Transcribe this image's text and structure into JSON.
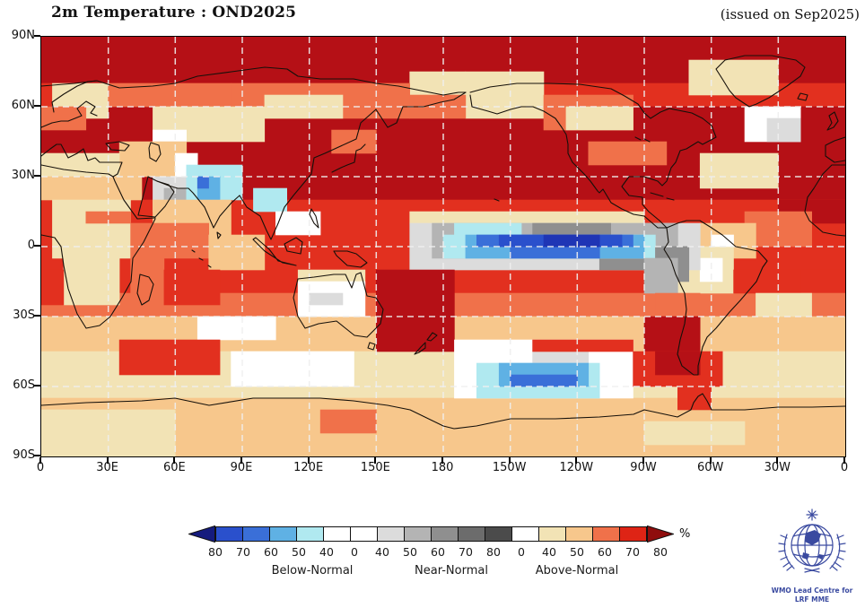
{
  "header": {
    "title": "2m Temperature : OND2025",
    "issued": "(issued on Sep2025)"
  },
  "axes": {
    "lat_labels": [
      "90N",
      "60N",
      "30N",
      "0",
      "30S",
      "60S",
      "90S"
    ],
    "lon_labels": [
      "0",
      "30E",
      "60E",
      "90E",
      "120E",
      "150E",
      "180",
      "150W",
      "120W",
      "90W",
      "60W",
      "30W",
      "0"
    ]
  },
  "colorbar": {
    "percent_label": "%",
    "tick_labels": [
      "80",
      "70",
      "60",
      "50",
      "40",
      "0",
      "40",
      "50",
      "60",
      "70",
      "80",
      "0",
      "40",
      "50",
      "60",
      "70",
      "80"
    ],
    "segment_colors": [
      "#2a50cc",
      "#3a6fd8",
      "#5fb1e4",
      "#b0e9f0",
      "#ffffff",
      "#ffffff",
      "#dcdcdc",
      "#b4b4b4",
      "#8f8f8f",
      "#6c6c6c",
      "#4b4b4b",
      "#ffffff",
      "#f2e3b5",
      "#f7c78c",
      "#f0714a",
      "#de2415"
    ],
    "arrow_left_color": "#151b7e",
    "arrow_right_color": "#8f0d0d",
    "categories": [
      "Below-Normal",
      "Near-Normal",
      "Above-Normal"
    ]
  },
  "logo": {
    "line1": "WMO Lead Centre for",
    "line2": "LRF MME",
    "color": "#3a4aa0"
  },
  "chart_data": {
    "type": "heatmap",
    "title": "2m Temperature : OND2025",
    "subtitle": "(issued on Sep2025)",
    "xlabel_ticks": [
      "0",
      "30E",
      "60E",
      "90E",
      "120E",
      "150E",
      "180",
      "150W",
      "120W",
      "90W",
      "60W",
      "30W",
      "0"
    ],
    "ylabel_ticks": [
      "90N",
      "60N",
      "30N",
      "0",
      "30S",
      "60S",
      "90S"
    ],
    "unit": "%",
    "scale": {
      "categories": [
        "Below-Normal",
        "Near-Normal",
        "Above-Normal"
      ],
      "probability_thresholds": [
        40,
        50,
        60,
        70,
        80
      ]
    },
    "map": {
      "grid": {
        "cols": 72,
        "rows": 36
      },
      "gridline_color": "#efefef",
      "palette": {
        "R": "#b51016",
        "r": "#e2301f",
        "o": "#f0714a",
        "a": "#f7c78c",
        "y": "#f2e3b5",
        "w": "#ffffff",
        "g": "#dcdcdc",
        "G": "#b4b4b4",
        "m": "#8f8f8f",
        "c": "#b0e9f0",
        "s": "#5fb1e4",
        "b": "#3a6fd8",
        "B": "#2a50cc",
        "N": "#1f35b5"
      },
      "base_bands": [
        [
          0,
          3,
          "R"
        ],
        [
          4,
          5,
          "r"
        ],
        [
          6,
          13,
          "R"
        ],
        [
          14,
          19,
          "r"
        ],
        [
          20,
          21,
          "r"
        ],
        [
          22,
          23,
          "o"
        ],
        [
          24,
          26,
          "a"
        ],
        [
          27,
          30,
          "y"
        ],
        [
          31,
          35,
          "a"
        ]
      ],
      "patches": [
        [
          2,
          4,
          58,
          65,
          "y"
        ],
        [
          3,
          4,
          33,
          37,
          "y"
        ],
        [
          3,
          6,
          38,
          44,
          "y"
        ],
        [
          4,
          6,
          1,
          5,
          "y"
        ],
        [
          4,
          5,
          6,
          16,
          "o"
        ],
        [
          4,
          6,
          17,
          32,
          "o"
        ],
        [
          5,
          6,
          20,
          26,
          "y"
        ],
        [
          6,
          8,
          10,
          19,
          "y"
        ],
        [
          5,
          7,
          45,
          52,
          "o"
        ],
        [
          6,
          7,
          47,
          52,
          "y"
        ],
        [
          6,
          8,
          63,
          67,
          "w"
        ],
        [
          7,
          8,
          65,
          67,
          "g"
        ],
        [
          6,
          7,
          0,
          3,
          "o"
        ],
        [
          8,
          9,
          10,
          12,
          "w"
        ],
        [
          9,
          11,
          7,
          12,
          "a"
        ],
        [
          10,
          12,
          0,
          6,
          "y"
        ],
        [
          12,
          13,
          0,
          8,
          "a"
        ],
        [
          9,
          10,
          49,
          55,
          "o"
        ],
        [
          10,
          12,
          59,
          65,
          "y"
        ],
        [
          12,
          14,
          10,
          13,
          "g"
        ],
        [
          13,
          13,
          11,
          12,
          "G"
        ],
        [
          10,
          11,
          12,
          13,
          "w"
        ],
        [
          11,
          13,
          13,
          17,
          "c"
        ],
        [
          12,
          13,
          14,
          15,
          "s"
        ],
        [
          12,
          12,
          14,
          14,
          "b"
        ],
        [
          13,
          14,
          19,
          21,
          "c"
        ],
        [
          15,
          16,
          21,
          24,
          "w"
        ],
        [
          14,
          16,
          10,
          16,
          "a"
        ],
        [
          14,
          18,
          1,
          7,
          "y"
        ],
        [
          15,
          15,
          4,
          7,
          "o"
        ],
        [
          16,
          18,
          8,
          14,
          "o"
        ],
        [
          17,
          19,
          15,
          19,
          "a"
        ],
        [
          14,
          15,
          66,
          71,
          "R"
        ],
        [
          15,
          17,
          63,
          68,
          "o"
        ],
        [
          16,
          18,
          59,
          63,
          "a"
        ],
        [
          18,
          21,
          57,
          61,
          "y"
        ],
        [
          19,
          20,
          59,
          60,
          "w"
        ],
        [
          8,
          9,
          26,
          29,
          "o"
        ],
        [
          5,
          6,
          33,
          37,
          "o"
        ],
        [
          15,
          15,
          33,
          53,
          "y"
        ],
        [
          16,
          19,
          33,
          58,
          "g"
        ],
        [
          16,
          18,
          35,
          56,
          "G"
        ],
        [
          16,
          16,
          44,
          50,
          "m"
        ],
        [
          18,
          19,
          50,
          57,
          "m"
        ],
        [
          17,
          18,
          36,
          54,
          "c"
        ],
        [
          16,
          16,
          37,
          42,
          "c"
        ],
        [
          17,
          18,
          38,
          53,
          "s"
        ],
        [
          17,
          17,
          39,
          52,
          "b"
        ],
        [
          18,
          18,
          42,
          49,
          "b"
        ],
        [
          17,
          17,
          41,
          51,
          "B"
        ],
        [
          17,
          17,
          45,
          49,
          "N"
        ],
        [
          18,
          20,
          55,
          57,
          "m"
        ],
        [
          19,
          21,
          54,
          56,
          "G"
        ],
        [
          17,
          17,
          60,
          61,
          "w"
        ],
        [
          20,
          21,
          23,
          28,
          "y"
        ],
        [
          21,
          23,
          23,
          28,
          "w"
        ],
        [
          22,
          22,
          24,
          26,
          "g"
        ],
        [
          20,
          26,
          30,
          36,
          "R"
        ],
        [
          22,
          25,
          55,
          58,
          "o"
        ],
        [
          24,
          26,
          54,
          58,
          "R"
        ],
        [
          20,
          21,
          62,
          67,
          "r"
        ],
        [
          22,
          23,
          64,
          68,
          "y"
        ],
        [
          19,
          22,
          2,
          6,
          "y"
        ],
        [
          20,
          22,
          0,
          1,
          "r"
        ],
        [
          19,
          21,
          8,
          10,
          "o"
        ],
        [
          20,
          22,
          11,
          15,
          "r"
        ],
        [
          24,
          25,
          14,
          20,
          "w"
        ],
        [
          26,
          28,
          7,
          15,
          "r"
        ],
        [
          27,
          29,
          17,
          27,
          "w"
        ],
        [
          26,
          30,
          37,
          52,
          "w"
        ],
        [
          27,
          28,
          44,
          48,
          "g"
        ],
        [
          28,
          30,
          39,
          49,
          "c"
        ],
        [
          28,
          29,
          41,
          48,
          "s"
        ],
        [
          29,
          29,
          42,
          47,
          "b"
        ],
        [
          26,
          26,
          44,
          52,
          "r"
        ],
        [
          27,
          29,
          53,
          60,
          "r"
        ],
        [
          27,
          28,
          55,
          58,
          "R"
        ],
        [
          30,
          31,
          57,
          59,
          "r"
        ],
        [
          32,
          35,
          0,
          11,
          "y"
        ],
        [
          32,
          33,
          25,
          29,
          "o"
        ],
        [
          33,
          34,
          54,
          62,
          "y"
        ]
      ],
      "coastline_paths": [
        "M0 55 L37 52 L62 49 L87 57 L124 55 L149 52 L174 44 L212 39 L249 34 L274 36 L286 44 L311 47 L348 47 L373 52 L398 55 L423 60 L448 65 L465 62 L473 62",
        "M473 62 L460 70 L445 73 L426 78 L403 78 L396 96 L386 101 L373 81 L356 96 L351 114 L316 130 L304 135 L301 153 L281 177 L271 190 L264 208 L256 226 L251 216 L244 200 L229 190 L221 177",
        "M221 177 L212 185 L199 200 L192 213 L182 190 L169 174 L164 169 L152 169 L142 166 L129 161 L119 156",
        "M119 156 L108 199 L127 201 L138 189 L148 173 L142 165 L129 161",
        "M127 203 L114 229 L102 247 L100 273 L90 291 L77 312 L65 322 L50 325 L40 309 L30 281 L25 255 L22 234 L15 224 L0 221",
        "M127 202 L107 203 L92 182 L82 161 L80 156 L75 153 L50 151 L25 148 L0 143",
        "M0 133 L10 125 L17 120 L22 120 L30 135 L40 130 L47 125 L52 138 L60 135 L65 140 L75 140 L90 140 L85 153 L80 156",
        "M14 84 L12 73 L25 64 L40 55 L52 50 L62 49",
        "M30 94 L45 88 L40 80 L50 72 L60 78 L55 85 L62 88",
        "M0 101 L12 96 L22 94 L30 94",
        "M72 119 L87 117 L98 121 L93 127 L78 126 Z",
        "M122 118 L131 121 L133 131 L128 139 L121 135 L120 124 Z",
        "M324 151 L334 146 L341 143 L349 140 L351 127 L356 125 L361 120",
        "M281 291 L286 270 L304 268 L326 265 L339 265 L346 280 L351 265 L356 263 L363 289 L373 291 L381 304 L378 320 L363 335 L349 333 L339 325 L329 317 L309 320 L294 325 L286 312 Z",
        "M366 341 L372 343 L370 349 L364 347 Z",
        "M326 239 L341 239 L351 242 L363 252 L356 257 L341 255 L329 244 Z",
        "M271 231 L284 224 L291 229 L289 242 L274 239 Z",
        "M239 224 L254 237 L264 250 L284 255 L269 252 L249 239 L236 226 Z",
        "M301 192 L306 200 L309 213 L304 208 L299 198 Z",
        "M416 354 L423 346 L428 341 L428 347 L421 352 Z",
        "M430 338 L436 330 L441 333 L434 339 Z",
        "M110 265 L120 268 L125 276 L120 294 L112 299 L107 286 Z",
        "M478 65 L480 78 L498 83 L508 86 L523 81 L535 78 L548 78 L560 83 L573 91 L580 101 L585 109 L587 120 L587 130 L592 140 L600 148 L605 153 L612 161 L620 172 L622 174 L626 170 L635 185 L647 192 L660 198 L672 200 L687 213 L697 213",
        "M478 62 L500 56 L530 52 L565 52 L600 53 L635 58 L650 66 L665 75 L672 85 L679 91 L690 84 L700 80 L710 82 L725 85 L737 91",
        "M697 213 L689 205 L677 195 L670 187 L670 179 L655 177 L647 167 L655 156 L672 156 L687 161 L692 166 L697 161 L702 146 L707 140 L712 127 L719 125 L732 117 L737 120 L752 112 L747 99 L737 91",
        "M789 78 L774 68 L767 60 L759 47 L752 36 L762 26 L784 21 L814 21 L841 26 L851 34 L846 44 L831 55 L811 68 L797 75 Z",
        "M846 63 L854 65 L852 71 L843 69 Z",
        "M876 104 L883 101 L888 94 L884 84 L878 88 L881 96 Z",
        "M896 112 L884 116 L874 121 L874 133 L884 140 L896 138",
        "M896 143 L881 143 L871 153 L861 169 L854 179 L851 195 L856 205 L871 218 L886 221 L896 222",
        "M697 213 L699 229 L694 237 L702 250 L707 265 L717 286 L719 304 L717 320 L712 338 L709 354 L714 367 L727 377 L732 377 L732 367 L737 346 L742 335 L752 325 L767 307 L779 294 L797 273 L804 257 L809 250 L799 239 L774 234 L759 221 L747 213 L734 205 L719 205 L709 208 L697 213",
        "M0 411 L50 408 L112 406 L149 403 L187 411 L236 403 L274 403 L311 403 L348 406 L386 411 L411 416 L448 434 L460 437 L485 434 L523 426 L573 426 L622 424 L660 421 L672 416 L709 424 L724 416 L727 408 L732 401 L737 398 L742 406 L747 416 L784 416 L821 413 L859 413 L896 412",
        "M679 174 L693 178 M697 180 L705 182",
        "M196 218 L200 221 L197 225 Z",
        "M662 112 L668 115 M672 114 L678 117",
        "M505 181 L510 183 M168 238 L171 240 M176 247 L180 249 M186 255 L189 257"
      ]
    }
  }
}
